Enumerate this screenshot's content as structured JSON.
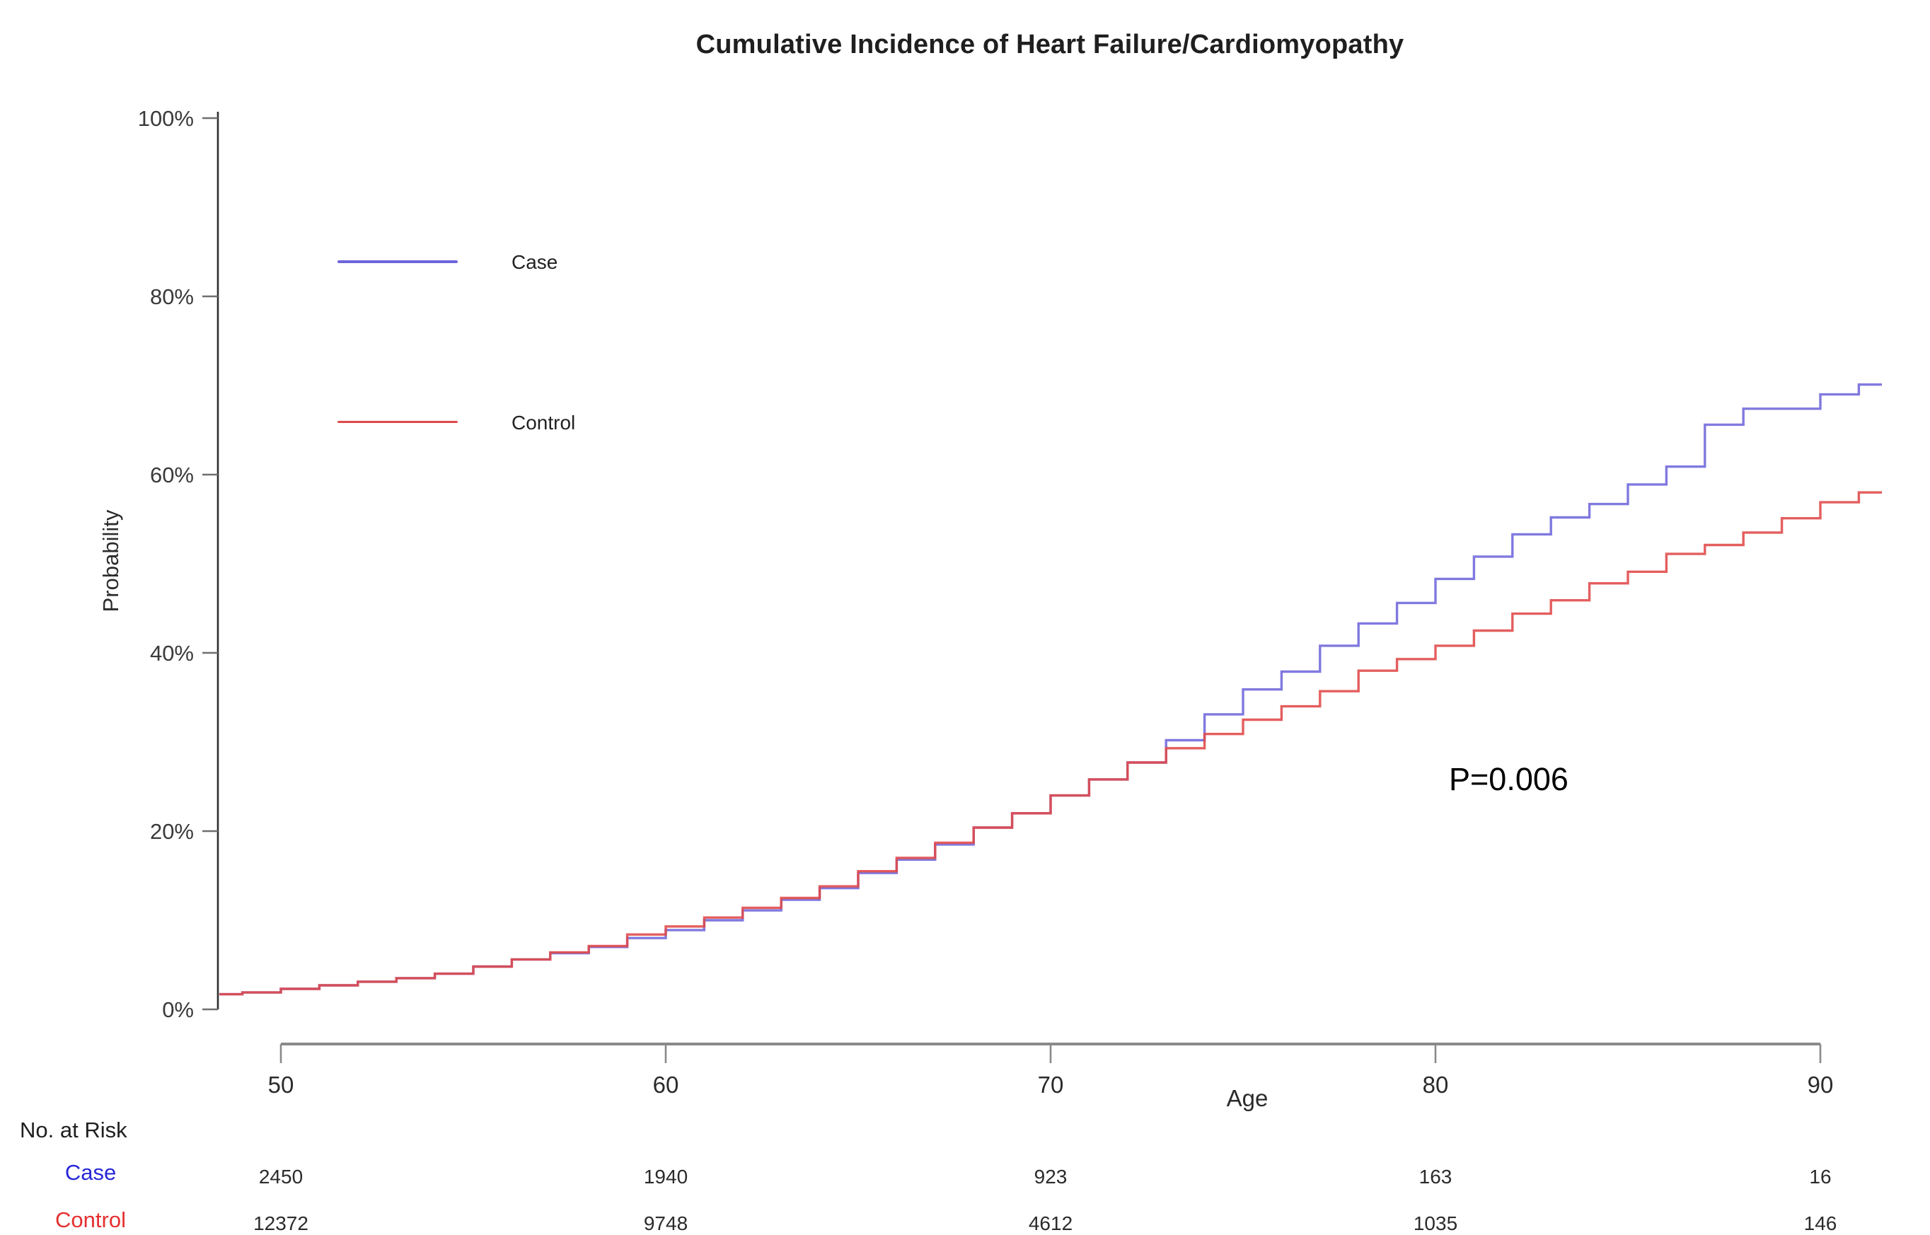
{
  "chart_data": {
    "type": "line",
    "line_style": "step-after",
    "title": "Cumulative Incidence of Heart Failure/Cardiomyopathy",
    "xlabel": "Age",
    "ylabel": "Probability",
    "annotation_p_value": "P=0.006",
    "grid": false,
    "xlim": [
      48.4,
      91.6
    ],
    "x_ticks": [
      50,
      60,
      70,
      80,
      90
    ],
    "ylim": [
      0,
      100
    ],
    "y_ticks": [
      {
        "value": 0,
        "label": "0%"
      },
      {
        "value": 20,
        "label": "20%"
      },
      {
        "value": 40,
        "label": "40%"
      },
      {
        "value": 60,
        "label": "60%"
      },
      {
        "value": 80,
        "label": "80%"
      },
      {
        "value": 100,
        "label": "100%"
      }
    ],
    "legend": {
      "position": "upper-left",
      "entries": [
        {
          "label": "Case",
          "color": "#6e66db"
        },
        {
          "label": "Control",
          "color": "#e04848"
        }
      ]
    },
    "series": [
      {
        "name": "Case",
        "color": "#6e66db",
        "points": [
          [
            48.4,
            1.7
          ],
          [
            49,
            1.9
          ],
          [
            50,
            2.3
          ],
          [
            51,
            2.7
          ],
          [
            52,
            3.1
          ],
          [
            53,
            3.5
          ],
          [
            54,
            4.0
          ],
          [
            55,
            4.8
          ],
          [
            56,
            5.6
          ],
          [
            57,
            6.3
          ],
          [
            58,
            7.0
          ],
          [
            59,
            8.0
          ],
          [
            60,
            8.9
          ],
          [
            61,
            10.0
          ],
          [
            62,
            11.1
          ],
          [
            63,
            12.3
          ],
          [
            64,
            13.6
          ],
          [
            65,
            15.3
          ],
          [
            66,
            16.8
          ],
          [
            67,
            18.5
          ],
          [
            68,
            20.4
          ],
          [
            69,
            22.0
          ],
          [
            70,
            24.0
          ],
          [
            71,
            25.8
          ],
          [
            72,
            27.7
          ],
          [
            73,
            30.2
          ],
          [
            74,
            33.1
          ],
          [
            75,
            35.9
          ],
          [
            76,
            37.9
          ],
          [
            77,
            40.8
          ],
          [
            78,
            43.3
          ],
          [
            79,
            45.6
          ],
          [
            80,
            48.3
          ],
          [
            81,
            50.8
          ],
          [
            82,
            53.3
          ],
          [
            83,
            55.2
          ],
          [
            84,
            56.7
          ],
          [
            85,
            58.9
          ],
          [
            86,
            60.9
          ],
          [
            87,
            65.6
          ],
          [
            88,
            67.4
          ],
          [
            90,
            69.0
          ],
          [
            91,
            70.1
          ]
        ]
      },
      {
        "name": "Control",
        "color": "#e04848",
        "points": [
          [
            48.4,
            1.7
          ],
          [
            49,
            1.9
          ],
          [
            50,
            2.3
          ],
          [
            51,
            2.7
          ],
          [
            52,
            3.1
          ],
          [
            53,
            3.5
          ],
          [
            54,
            4.0
          ],
          [
            55,
            4.8
          ],
          [
            56,
            5.6
          ],
          [
            57,
            6.4
          ],
          [
            58,
            7.1
          ],
          [
            59,
            8.4
          ],
          [
            60,
            9.3
          ],
          [
            61,
            10.3
          ],
          [
            62,
            11.4
          ],
          [
            63,
            12.5
          ],
          [
            64,
            13.8
          ],
          [
            65,
            15.5
          ],
          [
            66,
            17.0
          ],
          [
            67,
            18.7
          ],
          [
            68,
            20.4
          ],
          [
            69,
            22.0
          ],
          [
            70,
            24.0
          ],
          [
            71,
            25.8
          ],
          [
            72,
            27.7
          ],
          [
            73,
            29.3
          ],
          [
            74,
            30.9
          ],
          [
            75,
            32.5
          ],
          [
            76,
            34.0
          ],
          [
            77,
            35.7
          ],
          [
            78,
            38.0
          ],
          [
            79,
            39.3
          ],
          [
            80,
            40.8
          ],
          [
            81,
            42.5
          ],
          [
            82,
            44.4
          ],
          [
            83,
            45.9
          ],
          [
            84,
            47.8
          ],
          [
            85,
            49.1
          ],
          [
            86,
            51.1
          ],
          [
            87,
            52.1
          ],
          [
            88,
            53.5
          ],
          [
            89,
            55.1
          ],
          [
            90,
            56.9
          ],
          [
            91,
            58.0
          ]
        ]
      }
    ],
    "risk_table": {
      "label": "No. at Risk",
      "ages": [
        50,
        60,
        70,
        80,
        90
      ],
      "rows": [
        {
          "name": "Case",
          "color": "#2727d8",
          "values": [
            2450,
            1940,
            923,
            163,
            16
          ]
        },
        {
          "name": "Control",
          "color": "#e53030",
          "values": [
            12372,
            9748,
            4612,
            1035,
            146
          ]
        }
      ]
    }
  }
}
